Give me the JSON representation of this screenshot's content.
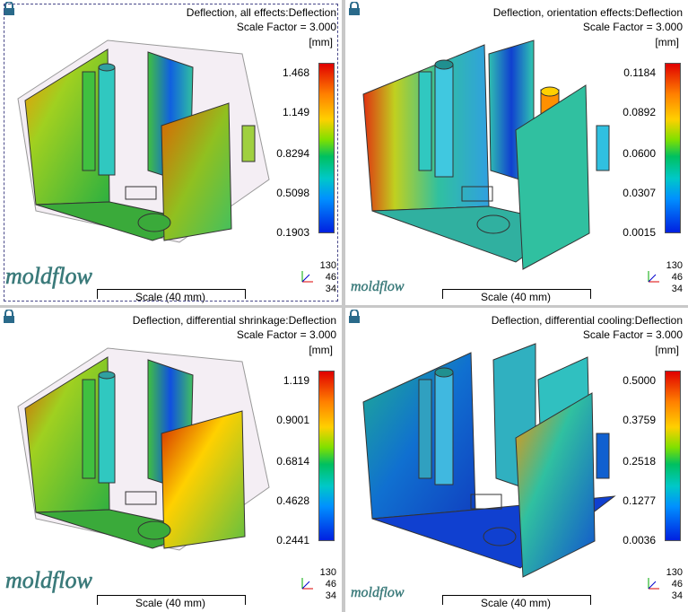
{
  "panes": [
    {
      "title_line1": "Deflection, all effects:Deflection",
      "title_line2": "Scale Factor = 3.000",
      "units": "[mm]",
      "ticks": [
        "1.468",
        "1.149",
        "0.8294",
        "0.5098",
        "0.1903"
      ],
      "scale_label": "Scale (40 mm)",
      "triad": [
        "130",
        "46",
        "34"
      ],
      "logo": "moldflow"
    },
    {
      "title_line1": "Deflection, orientation effects:Deflection",
      "title_line2": "Scale Factor = 3.000",
      "units": "[mm]",
      "ticks": [
        "0.1184",
        "0.0892",
        "0.0600",
        "0.0307",
        "0.0015"
      ],
      "scale_label": "Scale (40 mm)",
      "triad": [
        "130",
        "46",
        "34"
      ],
      "logo": "moldflow"
    },
    {
      "title_line1": "Deflection, differential shrinkage:Deflection",
      "title_line2": "Scale Factor = 3.000",
      "units": "[mm]",
      "ticks": [
        "1.119",
        "0.9001",
        "0.6814",
        "0.4628",
        "0.2441"
      ],
      "scale_label": "Scale (40 mm)",
      "triad": [
        "130",
        "46",
        "34"
      ],
      "logo": "moldflow"
    },
    {
      "title_line1": "Deflection, differential cooling:Deflection",
      "title_line2": "Scale Factor = 3.000",
      "units": "[mm]",
      "ticks": [
        "0.5000",
        "0.3759",
        "0.2518",
        "0.1277",
        "0.0036"
      ],
      "scale_label": "Scale (40 mm)",
      "triad": [
        "130",
        "46",
        "34"
      ],
      "logo": "moldflow"
    }
  ],
  "colors": {
    "frame": "#c8c8c8",
    "wall_green": "#3cb43c",
    "wall_blue": "#1e5adc",
    "accent_red": "#d02020"
  }
}
